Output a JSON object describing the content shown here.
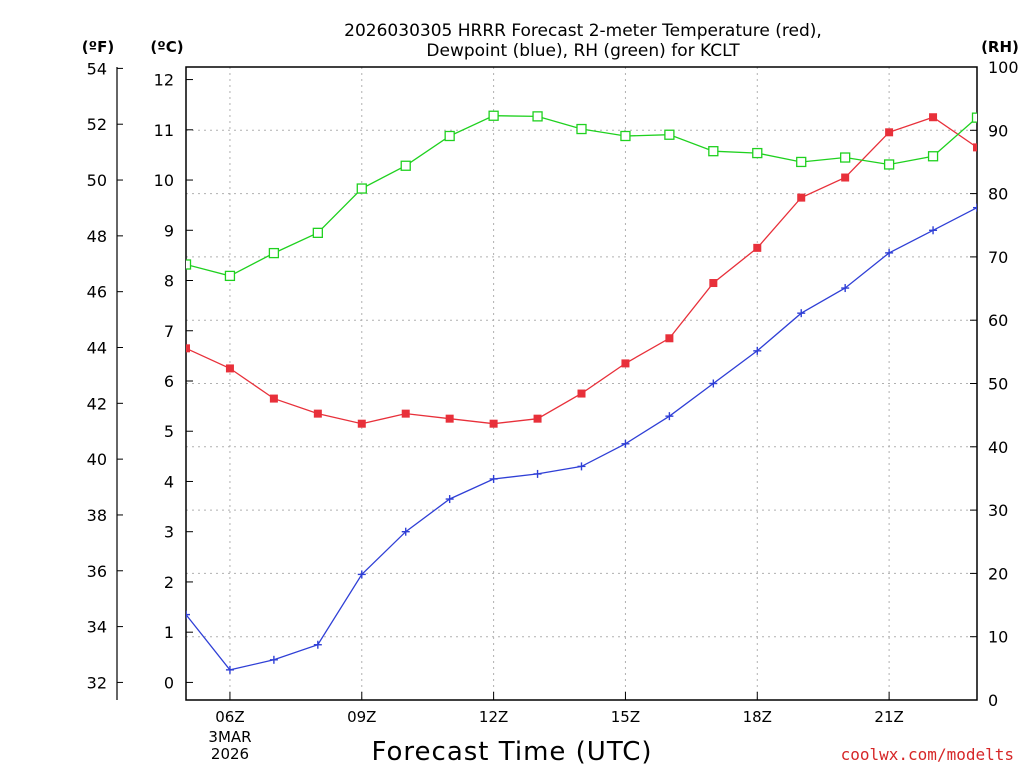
{
  "colors": {
    "temp": "#e8303a",
    "dewpoint": "#2f3fd6",
    "rh": "#1fd11f"
  },
  "chart_data": {
    "type": "line",
    "title_line1": "2026030305 HRRR Forecast 2-meter Temperature (red),",
    "title_line2": "Dewpoint (blue), RH (green) for KCLT",
    "xlabel": "Forecast Time (UTC)",
    "left_unit_f": "(ºF)",
    "left_unit_c": "(ºC)",
    "right_unit": "(RH)",
    "credit": "coolwx.com/modelts",
    "x_hours": [
      5,
      6,
      7,
      8,
      9,
      10,
      11,
      12,
      13,
      14,
      15,
      16,
      17,
      18,
      19,
      20,
      21,
      22,
      23
    ],
    "xlim": [
      5,
      23
    ],
    "x_ticks": [
      {
        "hour": 6,
        "label": "06Z"
      },
      {
        "hour": 9,
        "label": "09Z"
      },
      {
        "hour": 12,
        "label": "12Z"
      },
      {
        "hour": 15,
        "label": "15Z"
      },
      {
        "hour": 18,
        "label": "18Z"
      },
      {
        "hour": 21,
        "label": "21Z"
      }
    ],
    "date_label_line1": "3MAR",
    "date_label_line2": "2026",
    "c_axis": {
      "ylim": [
        -0.35,
        12.25
      ],
      "ticks": [
        0,
        1,
        2,
        3,
        4,
        5,
        6,
        7,
        8,
        9,
        10,
        11,
        12
      ]
    },
    "f_axis": {
      "ticks": [
        32,
        34,
        36,
        38,
        40,
        42,
        44,
        46,
        48,
        50,
        52,
        54
      ]
    },
    "rh_axis": {
      "ylim": [
        0,
        100
      ],
      "ticks": [
        0,
        10,
        20,
        30,
        40,
        50,
        60,
        70,
        80,
        90,
        100
      ]
    },
    "series": [
      {
        "name": "2-meter Temperature",
        "axis": "c",
        "marker": "filled-square",
        "values": [
          6.65,
          6.25,
          5.65,
          5.35,
          5.15,
          5.35,
          5.25,
          5.15,
          5.25,
          5.75,
          6.35,
          6.85,
          7.95,
          8.65,
          9.65,
          10.05,
          10.95,
          11.25,
          10.65
        ]
      },
      {
        "name": "Dewpoint",
        "axis": "c",
        "marker": "plus",
        "values": [
          1.35,
          0.25,
          0.45,
          0.75,
          2.15,
          3.0,
          3.65,
          4.05,
          4.15,
          4.3,
          4.75,
          5.3,
          5.95,
          6.6,
          7.35,
          7.85,
          8.55,
          9.0,
          9.45
        ]
      },
      {
        "name": "Relative Humidity",
        "axis": "rh",
        "marker": "open-square",
        "values": [
          68.8,
          67.0,
          70.6,
          73.8,
          80.8,
          84.4,
          89.1,
          92.3,
          92.2,
          90.2,
          89.1,
          89.3,
          86.7,
          86.4,
          85.0,
          85.7,
          84.6,
          85.9,
          92.0
        ]
      }
    ]
  }
}
